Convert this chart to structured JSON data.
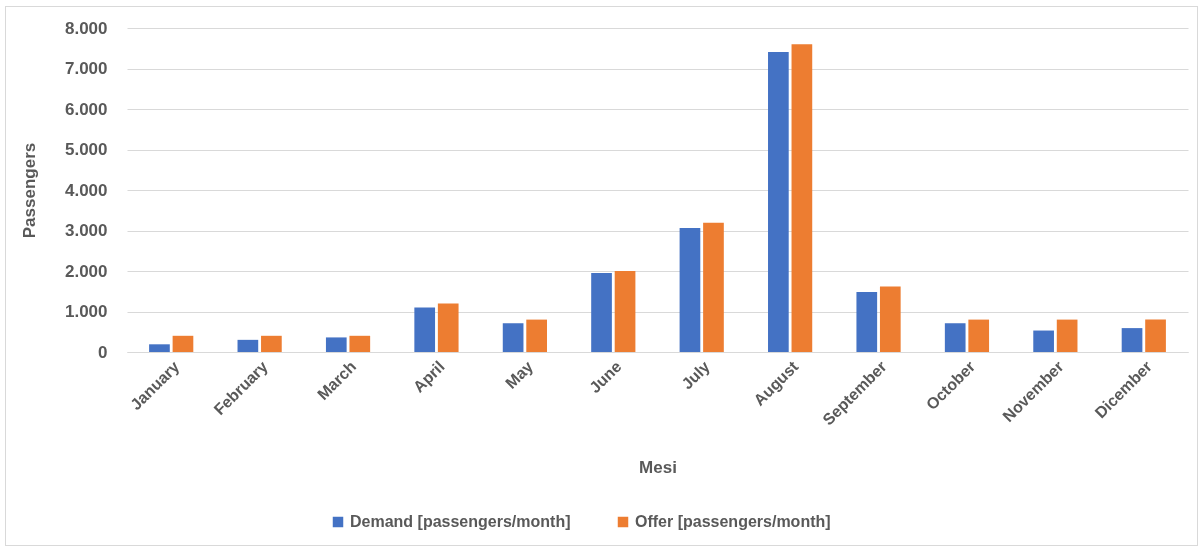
{
  "chart_data": {
    "type": "bar",
    "xlabel": "Mesi",
    "ylabel": "Passengers",
    "categories": [
      "January",
      "February",
      "March",
      "April",
      "May",
      "June",
      "July",
      "August",
      "September",
      "October",
      "November",
      "Dicember"
    ],
    "series": [
      {
        "name": "Demand [passengers/month]",
        "color": "#4472c4",
        "values": [
          190,
          300,
          360,
          1100,
          710,
          1950,
          3060,
          7410,
          1480,
          710,
          530,
          590
        ]
      },
      {
        "name": "Offer [passengers/month]",
        "color": "#ed7d31",
        "values": [
          400,
          400,
          400,
          1200,
          800,
          2000,
          3190,
          7600,
          1620,
          800,
          800,
          800
        ]
      }
    ],
    "ylim": [
      0,
      8000
    ],
    "yticks": [
      0,
      {
        "value": 1000,
        "label": "1.000"
      },
      {
        "value": 2000,
        "label": "2.000"
      },
      {
        "value": 3000,
        "label": "3.000"
      },
      {
        "value": 4000,
        "label": "4.000"
      },
      {
        "value": 5000,
        "label": "5.000"
      },
      {
        "value": 6000,
        "label": "6.000"
      },
      {
        "value": 7000,
        "label": "7.000"
      },
      {
        "value": 8000,
        "label": "8.000"
      }
    ],
    "grid": "y",
    "legend": "bottom"
  }
}
